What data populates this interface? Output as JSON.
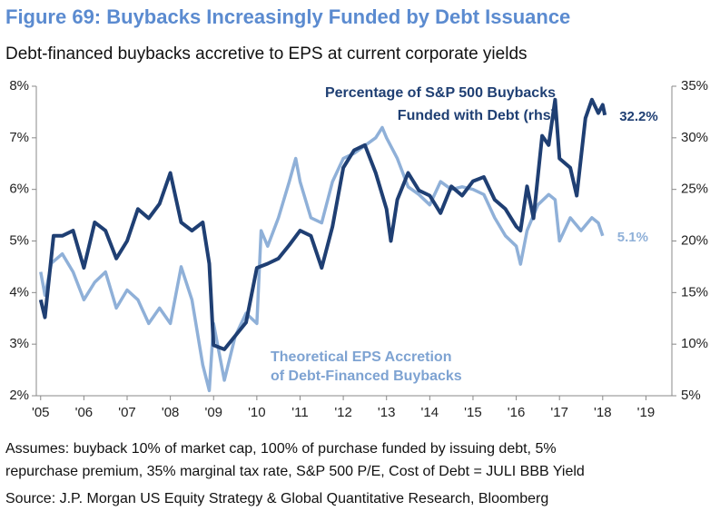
{
  "chart_data": {
    "type": "line",
    "title": "Figure 69: Buybacks Increasingly Funded by Debt Issuance",
    "subtitle": "Debt-financed buybacks accretive to EPS at current corporate yields",
    "footnotes": [
      "Assumes: buyback 10% of market cap, 100% of purchase funded by issuing debt, 5%",
      "repurchase premium, 35% marginal tax rate, S&P 500 P/E, Cost of Debt = JULI BBB Yield"
    ],
    "source": "Source: J.P. Morgan US Equity Strategy & Global Quantitative Research, Bloomberg",
    "xlim": [
      2004.9,
      2019.6
    ],
    "xticks": [
      {
        "value": 2005,
        "label": "'05"
      },
      {
        "value": 2006,
        "label": "'06"
      },
      {
        "value": 2007,
        "label": "'07"
      },
      {
        "value": 2008,
        "label": "'08"
      },
      {
        "value": 2009,
        "label": "'09"
      },
      {
        "value": 2010,
        "label": "'10"
      },
      {
        "value": 2011,
        "label": "'11"
      },
      {
        "value": 2012,
        "label": "'12"
      },
      {
        "value": 2013,
        "label": "'13"
      },
      {
        "value": 2014,
        "label": "'14"
      },
      {
        "value": 2015,
        "label": "'15"
      },
      {
        "value": 2016,
        "label": "'16"
      },
      {
        "value": 2017,
        "label": "'17"
      },
      {
        "value": 2018,
        "label": "'18"
      },
      {
        "value": 2019,
        "label": "'19"
      }
    ],
    "ylim": [
      2,
      8
    ],
    "yticks": [
      {
        "value": 2,
        "label": "2%"
      },
      {
        "value": 3,
        "label": "3%"
      },
      {
        "value": 4,
        "label": "4%"
      },
      {
        "value": 5,
        "label": "5%"
      },
      {
        "value": 6,
        "label": "6%"
      },
      {
        "value": 7,
        "label": "7%"
      },
      {
        "value": 8,
        "label": "8%"
      }
    ],
    "y2lim": [
      5,
      35
    ],
    "y2ticks": [
      {
        "value": 5,
        "label": "5%"
      },
      {
        "value": 10,
        "label": "10%"
      },
      {
        "value": 15,
        "label": "15%"
      },
      {
        "value": 20,
        "label": "20%"
      },
      {
        "value": 25,
        "label": "25%"
      },
      {
        "value": 30,
        "label": "30%"
      },
      {
        "value": 35,
        "label": "35%"
      }
    ],
    "grid": false,
    "annotations": [
      {
        "lines": [
          "Percentage of S&P 500 Buybacks",
          "Funded with Debt (rhs)"
        ],
        "series": 0
      },
      {
        "lines": [
          "Theoretical EPS Accretion",
          "of Debt-Financed Buybacks"
        ],
        "series": 1
      }
    ],
    "series": [
      {
        "color": "#1f3f73",
        "axis": "y2",
        "end_label": "32.2%",
        "x": [
          2005.0,
          2005.1,
          2005.3,
          2005.5,
          2005.75,
          2006.0,
          2006.25,
          2006.5,
          2006.75,
          2007.0,
          2007.25,
          2007.5,
          2007.75,
          2008.0,
          2008.25,
          2008.5,
          2008.75,
          2008.9,
          2009.0,
          2009.25,
          2009.5,
          2009.75,
          2010.0,
          2010.25,
          2010.5,
          2010.75,
          2011.0,
          2011.25,
          2011.5,
          2011.75,
          2012.0,
          2012.25,
          2012.5,
          2012.75,
          2013.0,
          2013.1,
          2013.25,
          2013.5,
          2013.75,
          2014.0,
          2014.25,
          2014.5,
          2014.75,
          2015.0,
          2015.25,
          2015.5,
          2015.75,
          2016.0,
          2016.1,
          2016.25,
          2016.4,
          2016.6,
          2016.75,
          2016.9,
          2017.0,
          2017.25,
          2017.4,
          2017.6,
          2017.75,
          2017.9,
          2018.0,
          2018.05
        ],
        "values": [
          14.3,
          12.6,
          20.5,
          20.5,
          21,
          17.4,
          21.8,
          21,
          18.3,
          20,
          23.1,
          22.2,
          23.6,
          26.6,
          21.8,
          21,
          21.8,
          17.8,
          9.9,
          9.5,
          10.8,
          12.1,
          17.4,
          17.8,
          18.3,
          19.6,
          21,
          20.5,
          17.4,
          21.4,
          27.1,
          28.8,
          29.3,
          26.6,
          23.1,
          20,
          24,
          26.6,
          24.9,
          24.4,
          22.7,
          25.3,
          24.4,
          25.8,
          26.2,
          24,
          23.1,
          21.4,
          21,
          25.3,
          22.2,
          30.2,
          29.3,
          33.7,
          28,
          27.1,
          24.4,
          31.9,
          33.7,
          32.4,
          33.2,
          32.2
        ]
      },
      {
        "color": "#8fb0d8",
        "axis": "y",
        "end_label": "5.1%",
        "x": [
          2005.0,
          2005.1,
          2005.25,
          2005.5,
          2005.75,
          2006.0,
          2006.25,
          2006.5,
          2006.75,
          2007.0,
          2007.25,
          2007.5,
          2007.75,
          2008.0,
          2008.25,
          2008.5,
          2008.75,
          2008.9,
          2009.0,
          2009.25,
          2009.5,
          2009.75,
          2010.0,
          2010.1,
          2010.25,
          2010.5,
          2010.75,
          2010.9,
          2011.0,
          2011.25,
          2011.5,
          2011.75,
          2012.0,
          2012.25,
          2012.5,
          2012.75,
          2012.9,
          2013.0,
          2013.25,
          2013.5,
          2013.75,
          2014.0,
          2014.25,
          2014.5,
          2014.75,
          2015.0,
          2015.25,
          2015.5,
          2015.75,
          2016.0,
          2016.1,
          2016.25,
          2016.5,
          2016.75,
          2016.9,
          2017.0,
          2017.25,
          2017.5,
          2017.75,
          2017.9,
          2018.0
        ],
        "values": [
          4.4,
          3.95,
          4.57,
          4.75,
          4.4,
          3.86,
          4.2,
          4.4,
          3.7,
          4.05,
          3.86,
          3.4,
          3.7,
          3.4,
          4.5,
          3.86,
          2.6,
          2.1,
          3.4,
          2.3,
          3.15,
          3.6,
          3.4,
          5.2,
          4.9,
          5.45,
          6.15,
          6.6,
          6.15,
          5.45,
          5.35,
          6.15,
          6.6,
          6.7,
          6.85,
          7.0,
          7.2,
          7.0,
          6.6,
          6.05,
          5.9,
          5.7,
          6.15,
          6.0,
          6.05,
          6.0,
          5.9,
          5.45,
          5.1,
          4.9,
          4.55,
          5.2,
          5.7,
          5.9,
          5.8,
          5.0,
          5.45,
          5.2,
          5.45,
          5.35,
          5.1
        ]
      }
    ]
  }
}
